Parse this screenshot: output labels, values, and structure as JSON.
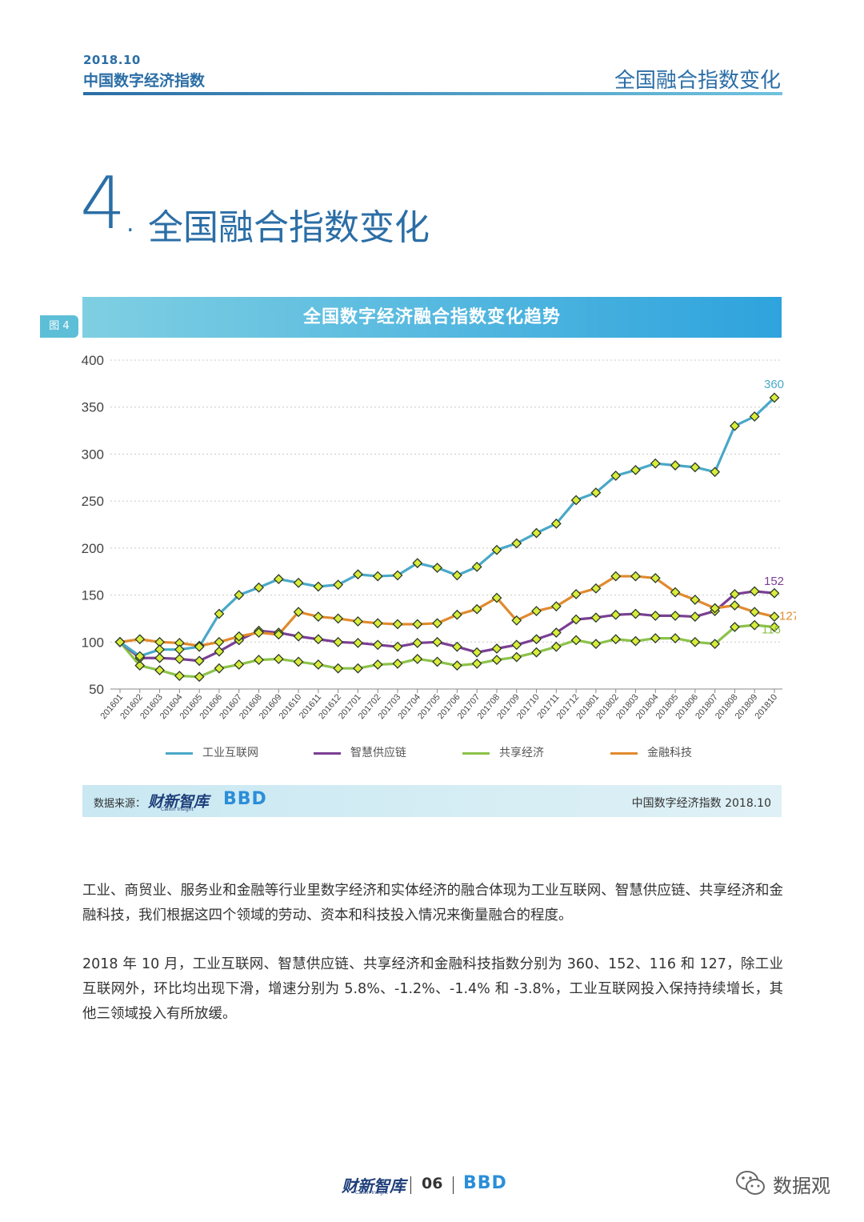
{
  "header": {
    "date": "2018.10",
    "report_title": "中国数字经济指数",
    "section_title": "全国融合指数变化"
  },
  "section": {
    "number": "4",
    "dot": ".",
    "title": "全国融合指数变化"
  },
  "figure": {
    "tag": "图 4",
    "title": "全国数字经济融合指数变化趋势"
  },
  "chart_data": {
    "type": "line",
    "title": "全国数字经济融合指数变化趋势",
    "ylim": [
      50,
      400
    ],
    "yticks": [
      50,
      100,
      150,
      200,
      250,
      300,
      350,
      400
    ],
    "grid": true,
    "legend_position": "bottom",
    "x": [
      "201601",
      "201602",
      "201603",
      "201604",
      "201605",
      "201606",
      "201607",
      "201608",
      "201609",
      "201610",
      "201611",
      "201612",
      "201701",
      "201702",
      "201703",
      "201704",
      "201705",
      "201706",
      "201707",
      "201708",
      "201709",
      "201710",
      "201711",
      "201712",
      "201801",
      "201802",
      "201803",
      "201804",
      "201805",
      "201806",
      "201807",
      "201808",
      "201809",
      "201810"
    ],
    "series": [
      {
        "name": "工业互联网",
        "color": "#4aa8c7",
        "end_label": "360",
        "values": [
          100,
          85,
          92,
          92,
          95,
          130,
          150,
          158,
          167,
          163,
          159,
          161,
          172,
          170,
          171,
          184,
          179,
          171,
          180,
          198,
          205,
          216,
          226,
          251,
          259,
          277,
          283,
          290,
          288,
          286,
          281,
          330,
          340,
          360
        ]
      },
      {
        "name": "智慧供应链",
        "color": "#7b3f93",
        "end_label": "152",
        "values": [
          100,
          83,
          83,
          82,
          80,
          90,
          102,
          112,
          110,
          106,
          103,
          100,
          99,
          97,
          95,
          99,
          100,
          95,
          89,
          93,
          97,
          103,
          110,
          124,
          126,
          129,
          130,
          128,
          128,
          127,
          133,
          151,
          154,
          152
        ]
      },
      {
        "name": "共享经济",
        "color": "#8cc24a",
        "end_label": "116",
        "values": [
          100,
          75,
          70,
          64,
          63,
          72,
          76,
          81,
          82,
          79,
          76,
          72,
          72,
          76,
          77,
          82,
          79,
          75,
          77,
          81,
          84,
          89,
          95,
          102,
          98,
          103,
          101,
          104,
          104,
          100,
          98,
          116,
          118,
          116
        ]
      },
      {
        "name": "金融科技",
        "color": "#e08a2e",
        "end_label": "127",
        "values": [
          100,
          103,
          100,
          99,
          96,
          100,
          106,
          110,
          108,
          132,
          127,
          125,
          122,
          120,
          119,
          119,
          120,
          129,
          135,
          147,
          123,
          133,
          138,
          151,
          157,
          170,
          170,
          168,
          153,
          145,
          136,
          139,
          132,
          127
        ]
      }
    ]
  },
  "source": {
    "label": "数据来源：",
    "logo": "财新智库",
    "logo_sub": "Caixin Insight",
    "bbd": "BBD",
    "right": "中国数字经济指数 2018.10"
  },
  "paragraphs": [
    "工业、商贸业、服务业和金融等行业里数字经济和实体经济的融合体现为工业互联网、智慧供应链、共享经济和金融科技，我们根据这四个领域的劳动、资本和科技投入情况来衡量融合的程度。",
    "2018 年 10 月，工业互联网、智慧供应链、共享经济和金融科技指数分别为 360、152、116 和 127，除工业互联网外，环比均出现下滑，增速分别为 5.8%、-1.2%、-1.4% 和 -3.8%，工业互联网投入保持持续增长，其他三领域投入有所放缓。"
  ],
  "footer": {
    "logo": "财新智库",
    "logo_sub": "Caixin Insight",
    "page": "06",
    "bbd": "BBD"
  },
  "watermark": {
    "text": "数据观",
    "icon": "wechat-icon"
  }
}
